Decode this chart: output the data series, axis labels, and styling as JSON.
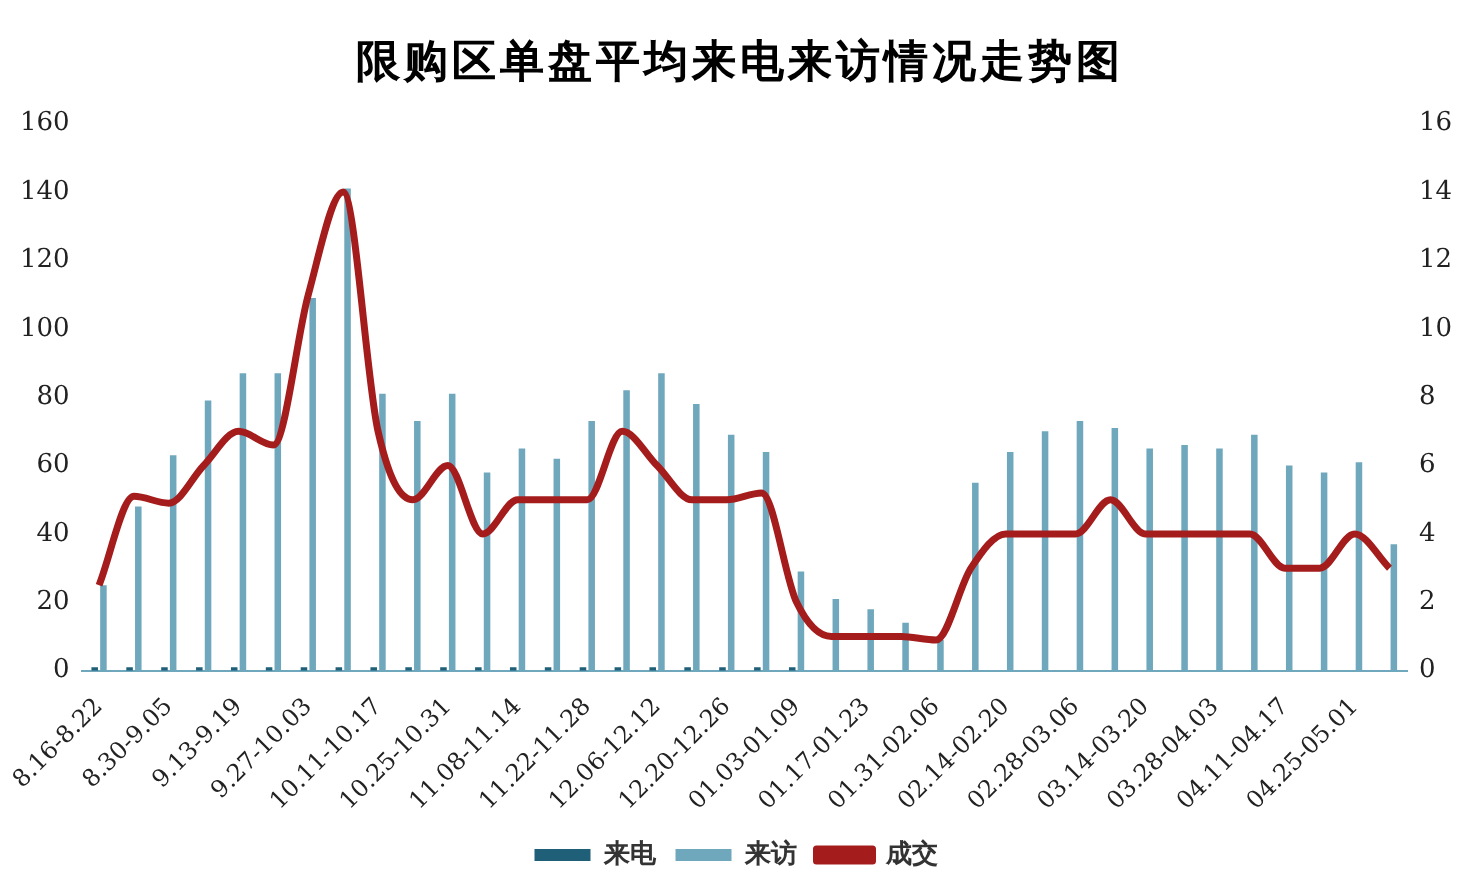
{
  "chart_data": {
    "type": "bar",
    "title": "限购区单盘平均来电来访情况走势图",
    "categories": [
      "8.16-8.22",
      null,
      "8.30-9.05",
      null,
      "9.13-9.19",
      null,
      "9.27-10.03",
      null,
      "10.11-10.17",
      null,
      "10.25-10.31",
      null,
      "11.08-11.14",
      null,
      "11.22-11.28",
      null,
      "12.06-12.12",
      null,
      "12.20-12.26",
      null,
      "01.03-01.09",
      null,
      "01.17-01.23",
      null,
      "01.31-02.06",
      null,
      "02.14-02.20",
      null,
      "02.28-03.06",
      null,
      "03.14-03.20",
      null,
      "03.28-04.03",
      null,
      "04.11-04.17",
      null,
      "04.25-05.01",
      null
    ],
    "series": [
      {
        "name": "来电",
        "color": "#1f5f78",
        "values": [
          1,
          1,
          1,
          1,
          1,
          1,
          1,
          1,
          1,
          1,
          1,
          1,
          1,
          1,
          1,
          1,
          1,
          1,
          1,
          1,
          1,
          0,
          0,
          0,
          0,
          0,
          0,
          0,
          0,
          0,
          0,
          0,
          0,
          0,
          0,
          0,
          0,
          0
        ]
      },
      {
        "name": "来访",
        "color": "#6fa8bd",
        "values": [
          25,
          48,
          63,
          79,
          87,
          87,
          109,
          141,
          81,
          73,
          81,
          58,
          65,
          62,
          73,
          82,
          87,
          78,
          69,
          64,
          29,
          21,
          18,
          14,
          9,
          55,
          64,
          70,
          73,
          71,
          65,
          66,
          65,
          69,
          60,
          58,
          61,
          37
        ]
      },
      {
        "name": "成交",
        "type": "line",
        "axis": "y2",
        "color": "#a51c1c",
        "values": [
          2.5,
          5.1,
          4.9,
          6,
          7,
          6.6,
          11,
          14,
          7,
          5,
          6,
          4,
          5,
          5,
          5,
          7,
          6,
          5,
          5,
          5.2,
          2,
          1,
          1,
          1,
          0.9,
          3,
          4,
          4,
          4,
          5,
          4,
          4,
          4,
          4,
          3,
          3,
          4,
          3
        ]
      }
    ],
    "ylim": [
      0,
      160
    ],
    "yticks": [
      0,
      20,
      40,
      60,
      80,
      100,
      120,
      140,
      160
    ],
    "y2lim": [
      0,
      16
    ],
    "y2ticks": [
      0,
      2,
      4,
      6,
      8,
      10,
      12,
      14,
      16
    ],
    "grid": false,
    "legend": "bottom",
    "marker": "none",
    "line_style": "solid"
  }
}
